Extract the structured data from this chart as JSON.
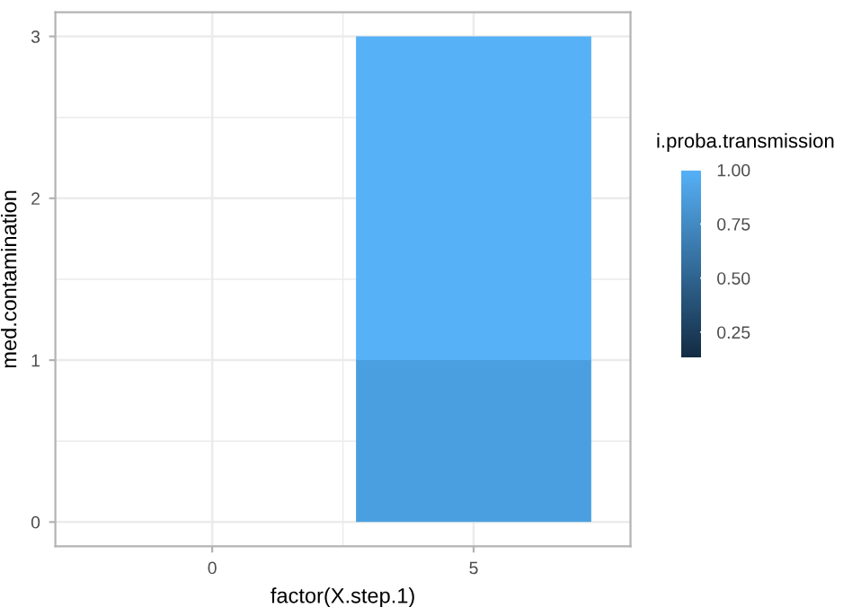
{
  "chart_data": {
    "type": "bar",
    "xlabel": "factor(X.step.1)",
    "ylabel": "med.contamination",
    "categories": [
      "0",
      "5"
    ],
    "stacked": true,
    "series": [
      {
        "color": "#4a9fe0",
        "values": [
          0,
          1
        ]
      },
      {
        "color": "#56b1f7",
        "values": [
          0,
          2
        ]
      }
    ],
    "ylim": [
      -0.15,
      3.15
    ],
    "yticks": [
      0,
      1,
      2,
      3
    ],
    "grid": true,
    "clabel": "i.proba.transmission",
    "clim": [
      0.13,
      1.0
    ],
    "cticks": [
      {
        "value": 0.25,
        "label": "0.25"
      },
      {
        "value": 0.5,
        "label": "0.50"
      },
      {
        "value": 0.75,
        "label": "0.75"
      },
      {
        "value": 1.0,
        "label": "1.00"
      }
    ]
  }
}
